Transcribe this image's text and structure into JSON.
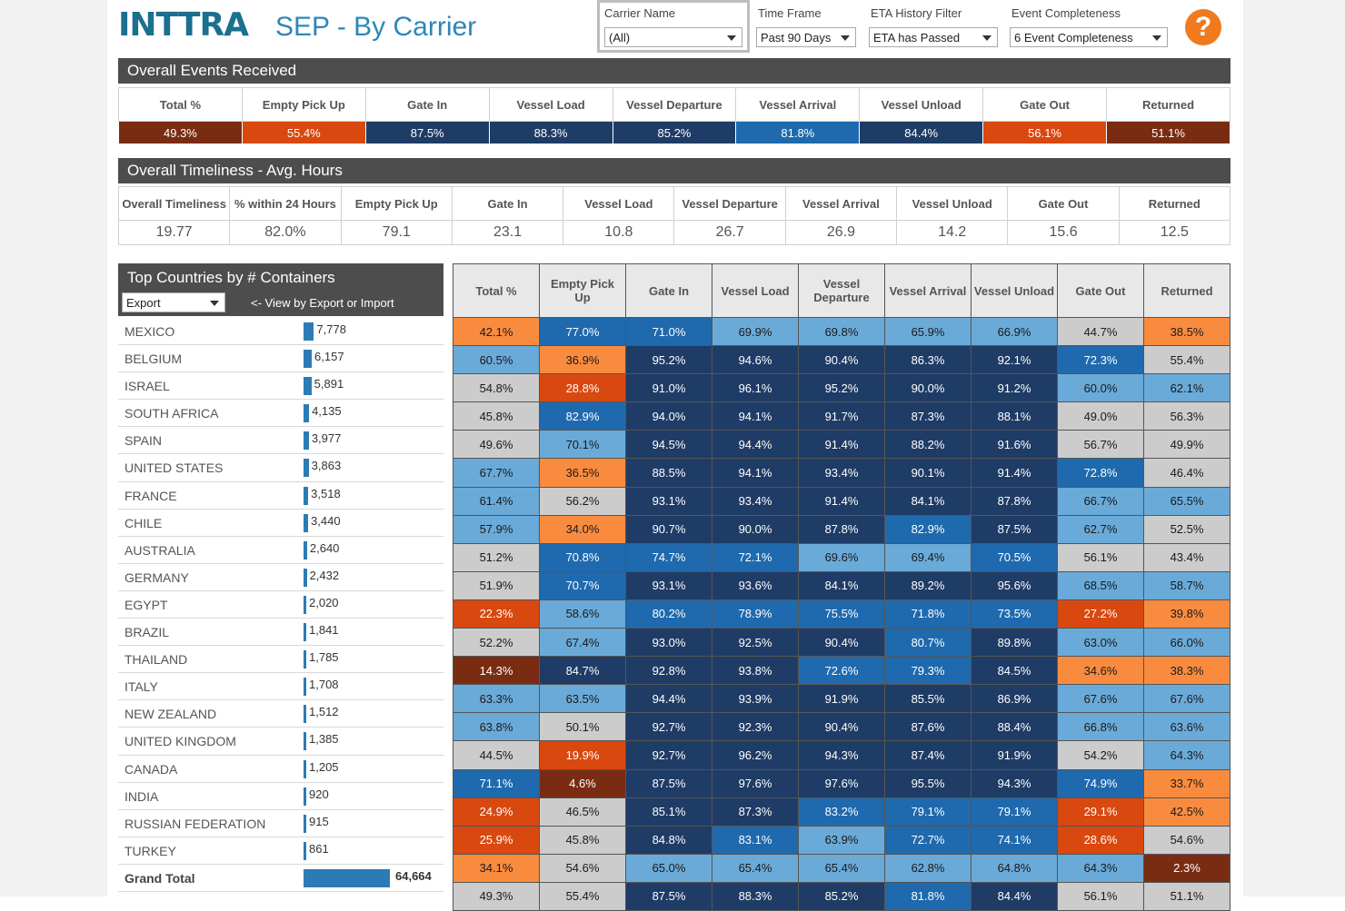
{
  "header": {
    "logo": "INTTRA",
    "title": "SEP - By Carrier",
    "help": "?"
  },
  "filters": {
    "carrier": {
      "label": "Carrier Name",
      "value": "(All)"
    },
    "time_frame": {
      "label": "Time Frame",
      "value": "Past 90 Days"
    },
    "eta": {
      "label": "ETA History Filter",
      "value": "ETA has Passed"
    },
    "completeness": {
      "label": "Event Completeness",
      "value": "6 Event Completeness"
    }
  },
  "colors": {
    "dark": "#1f3c66",
    "mid": "#1f6aae",
    "light": "#6aaad8",
    "grey": "#cccccc",
    "orange": "#f98b3f",
    "red": "#d9480f",
    "brown": "#7a2c13"
  },
  "events": {
    "title": "Overall Events Received",
    "headers": [
      "Total %",
      "Empty Pick Up",
      "Gate In",
      "Vessel Load",
      "Vessel Departure",
      "Vessel Arrival",
      "Vessel Unload",
      "Gate Out",
      "Returned"
    ],
    "values": [
      "49.3%",
      "55.4%",
      "87.5%",
      "88.3%",
      "85.2%",
      "81.8%",
      "84.4%",
      "56.1%",
      "51.1%"
    ],
    "colors": [
      "brown",
      "red",
      "dark",
      "dark",
      "dark",
      "mid",
      "dark",
      "red",
      "brown"
    ]
  },
  "timeliness": {
    "title": "Overall Timeliness - Avg. Hours",
    "headers": [
      "Overall Timeliness",
      "% within 24 Hours",
      "Empty Pick Up",
      "Gate In",
      "Vessel Load",
      "Vessel Departure",
      "Vessel Arrival",
      "Vessel Unload",
      "Gate Out",
      "Returned"
    ],
    "values": [
      "19.77",
      "82.0%",
      "79.1",
      "23.1",
      "10.8",
      "26.7",
      "26.9",
      "14.2",
      "15.6",
      "12.5"
    ]
  },
  "countries": {
    "title": "Top Countries by # Containers",
    "select": "Export",
    "hint": "<- View by Export or Import",
    "max": 64664,
    "rows": [
      {
        "name": "MEXICO",
        "count": "7,778",
        "n": 7778
      },
      {
        "name": "BELGIUM",
        "count": "6,157",
        "n": 6157
      },
      {
        "name": "ISRAEL",
        "count": "5,891",
        "n": 5891
      },
      {
        "name": "SOUTH AFRICA",
        "count": "4,135",
        "n": 4135
      },
      {
        "name": "SPAIN",
        "count": "3,977",
        "n": 3977
      },
      {
        "name": "UNITED STATES",
        "count": "3,863",
        "n": 3863
      },
      {
        "name": "FRANCE",
        "count": "3,518",
        "n": 3518
      },
      {
        "name": "CHILE",
        "count": "3,440",
        "n": 3440
      },
      {
        "name": "AUSTRALIA",
        "count": "2,640",
        "n": 2640
      },
      {
        "name": "GERMANY",
        "count": "2,432",
        "n": 2432
      },
      {
        "name": "EGYPT",
        "count": "2,020",
        "n": 2020
      },
      {
        "name": "BRAZIL",
        "count": "1,841",
        "n": 1841
      },
      {
        "name": "THAILAND",
        "count": "1,785",
        "n": 1785
      },
      {
        "name": "ITALY",
        "count": "1,708",
        "n": 1708
      },
      {
        "name": "NEW ZEALAND",
        "count": "1,512",
        "n": 1512
      },
      {
        "name": "UNITED KINGDOM",
        "count": "1,385",
        "n": 1385
      },
      {
        "name": "CANADA",
        "count": "1,205",
        "n": 1205
      },
      {
        "name": "INDIA",
        "count": "920",
        "n": 920
      },
      {
        "name": "RUSSIAN FEDERATION",
        "count": "915",
        "n": 915
      },
      {
        "name": "TURKEY",
        "count": "861",
        "n": 861
      }
    ],
    "total": {
      "name": "Grand Total",
      "count": "64,664",
      "n": 64664
    }
  },
  "matrix": {
    "headers": [
      "Total %",
      "Empty Pick Up",
      "Gate In",
      "Vessel Load",
      "Vessel Departure",
      "Vessel Arrival",
      "Vessel Unload",
      "Gate Out",
      "Returned"
    ],
    "rows": [
      {
        "v": [
          "42.1%",
          "77.0%",
          "71.0%",
          "69.9%",
          "69.8%",
          "65.9%",
          "66.9%",
          "44.7%",
          "38.5%"
        ],
        "c": [
          "orange",
          "mid",
          "mid",
          "light",
          "light",
          "light",
          "light",
          "grey",
          "orange"
        ]
      },
      {
        "v": [
          "60.5%",
          "36.9%",
          "95.2%",
          "94.6%",
          "90.4%",
          "86.3%",
          "92.1%",
          "72.3%",
          "55.4%"
        ],
        "c": [
          "light",
          "orange",
          "dark",
          "dark",
          "dark",
          "dark",
          "dark",
          "mid",
          "grey"
        ]
      },
      {
        "v": [
          "54.8%",
          "28.8%",
          "91.0%",
          "96.1%",
          "95.2%",
          "90.0%",
          "91.2%",
          "60.0%",
          "62.1%"
        ],
        "c": [
          "grey",
          "red",
          "dark",
          "dark",
          "dark",
          "dark",
          "dark",
          "light",
          "light"
        ]
      },
      {
        "v": [
          "45.8%",
          "82.9%",
          "94.0%",
          "94.1%",
          "91.7%",
          "87.3%",
          "88.1%",
          "49.0%",
          "56.3%"
        ],
        "c": [
          "grey",
          "mid",
          "dark",
          "dark",
          "dark",
          "dark",
          "dark",
          "grey",
          "grey"
        ]
      },
      {
        "v": [
          "49.6%",
          "70.1%",
          "94.5%",
          "94.4%",
          "91.4%",
          "88.2%",
          "91.6%",
          "56.7%",
          "49.9%"
        ],
        "c": [
          "grey",
          "light",
          "dark",
          "dark",
          "dark",
          "dark",
          "dark",
          "grey",
          "grey"
        ]
      },
      {
        "v": [
          "67.7%",
          "36.5%",
          "88.5%",
          "94.1%",
          "93.4%",
          "90.1%",
          "91.4%",
          "72.8%",
          "46.4%"
        ],
        "c": [
          "light",
          "orange",
          "dark",
          "dark",
          "dark",
          "dark",
          "dark",
          "mid",
          "grey"
        ]
      },
      {
        "v": [
          "61.4%",
          "56.2%",
          "93.1%",
          "93.4%",
          "91.4%",
          "84.1%",
          "87.8%",
          "66.7%",
          "65.5%"
        ],
        "c": [
          "light",
          "grey",
          "dark",
          "dark",
          "dark",
          "dark",
          "dark",
          "light",
          "light"
        ]
      },
      {
        "v": [
          "57.9%",
          "34.0%",
          "90.7%",
          "90.0%",
          "87.8%",
          "82.9%",
          "87.5%",
          "62.7%",
          "52.5%"
        ],
        "c": [
          "light",
          "orange",
          "dark",
          "dark",
          "dark",
          "mid",
          "dark",
          "light",
          "grey"
        ]
      },
      {
        "v": [
          "51.2%",
          "70.8%",
          "74.7%",
          "72.1%",
          "69.6%",
          "69.4%",
          "70.5%",
          "56.1%",
          "43.4%"
        ],
        "c": [
          "grey",
          "mid",
          "mid",
          "mid",
          "light",
          "light",
          "mid",
          "grey",
          "grey"
        ]
      },
      {
        "v": [
          "51.9%",
          "70.7%",
          "93.1%",
          "93.6%",
          "84.1%",
          "89.2%",
          "95.6%",
          "68.5%",
          "58.7%"
        ],
        "c": [
          "grey",
          "mid",
          "dark",
          "dark",
          "dark",
          "dark",
          "dark",
          "light",
          "light"
        ]
      },
      {
        "v": [
          "22.3%",
          "58.6%",
          "80.2%",
          "78.9%",
          "75.5%",
          "71.8%",
          "73.5%",
          "27.2%",
          "39.8%"
        ],
        "c": [
          "red",
          "light",
          "mid",
          "mid",
          "mid",
          "mid",
          "mid",
          "red",
          "orange"
        ]
      },
      {
        "v": [
          "52.2%",
          "67.4%",
          "93.0%",
          "92.5%",
          "90.4%",
          "80.7%",
          "89.8%",
          "63.0%",
          "66.0%"
        ],
        "c": [
          "grey",
          "light",
          "dark",
          "dark",
          "dark",
          "mid",
          "dark",
          "light",
          "light"
        ]
      },
      {
        "v": [
          "14.3%",
          "84.7%",
          "92.8%",
          "93.8%",
          "72.6%",
          "79.3%",
          "84.5%",
          "34.6%",
          "38.3%"
        ],
        "c": [
          "brown",
          "dark",
          "dark",
          "dark",
          "mid",
          "mid",
          "dark",
          "orange",
          "orange"
        ]
      },
      {
        "v": [
          "63.3%",
          "63.5%",
          "94.4%",
          "93.9%",
          "91.9%",
          "85.5%",
          "86.9%",
          "67.6%",
          "67.6%"
        ],
        "c": [
          "light",
          "light",
          "dark",
          "dark",
          "dark",
          "dark",
          "dark",
          "light",
          "light"
        ]
      },
      {
        "v": [
          "63.8%",
          "50.1%",
          "92.7%",
          "92.3%",
          "90.4%",
          "87.6%",
          "88.4%",
          "66.8%",
          "63.6%"
        ],
        "c": [
          "light",
          "grey",
          "dark",
          "dark",
          "dark",
          "dark",
          "dark",
          "light",
          "light"
        ]
      },
      {
        "v": [
          "44.5%",
          "19.9%",
          "92.7%",
          "96.2%",
          "94.3%",
          "87.4%",
          "91.9%",
          "54.2%",
          "64.3%"
        ],
        "c": [
          "grey",
          "red",
          "dark",
          "dark",
          "dark",
          "dark",
          "dark",
          "grey",
          "light"
        ]
      },
      {
        "v": [
          "71.1%",
          "4.6%",
          "87.5%",
          "97.6%",
          "97.6%",
          "95.5%",
          "94.3%",
          "74.9%",
          "33.7%"
        ],
        "c": [
          "mid",
          "brown",
          "dark",
          "dark",
          "dark",
          "dark",
          "dark",
          "mid",
          "orange"
        ]
      },
      {
        "v": [
          "24.9%",
          "46.5%",
          "85.1%",
          "87.3%",
          "83.2%",
          "79.1%",
          "79.1%",
          "29.1%",
          "42.5%"
        ],
        "c": [
          "red",
          "grey",
          "dark",
          "dark",
          "mid",
          "mid",
          "mid",
          "red",
          "orange"
        ]
      },
      {
        "v": [
          "25.9%",
          "45.8%",
          "84.8%",
          "83.1%",
          "63.9%",
          "72.7%",
          "74.1%",
          "28.6%",
          "54.6%"
        ],
        "c": [
          "red",
          "grey",
          "dark",
          "mid",
          "light",
          "mid",
          "mid",
          "red",
          "grey"
        ]
      },
      {
        "v": [
          "34.1%",
          "54.6%",
          "65.0%",
          "65.4%",
          "65.4%",
          "62.8%",
          "64.8%",
          "64.3%",
          "2.3%"
        ],
        "c": [
          "orange",
          "grey",
          "light",
          "light",
          "light",
          "light",
          "light",
          "light",
          "brown"
        ]
      },
      {
        "v": [
          "49.3%",
          "55.4%",
          "87.5%",
          "88.3%",
          "85.2%",
          "81.8%",
          "84.4%",
          "56.1%",
          "51.1%"
        ],
        "c": [
          "grey",
          "grey",
          "dark",
          "dark",
          "dark",
          "mid",
          "dark",
          "grey",
          "grey"
        ]
      }
    ]
  }
}
